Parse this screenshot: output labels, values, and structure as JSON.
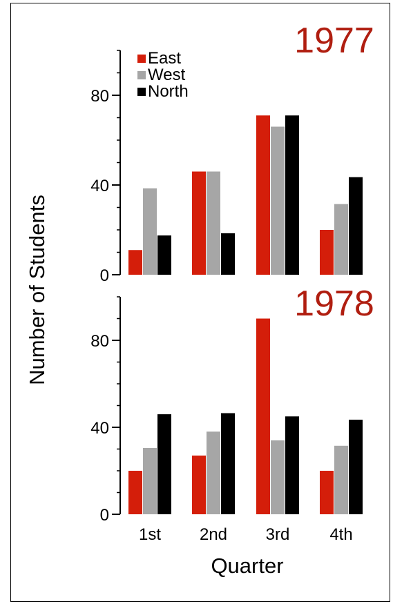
{
  "chart_data": [
    {
      "type": "bar",
      "title": "1977",
      "categories": [
        "1st",
        "2nd",
        "3rd",
        "4th"
      ],
      "series": [
        {
          "name": "East",
          "values": [
            11,
            46,
            71,
            20
          ]
        },
        {
          "name": "West",
          "values": [
            38.5,
            46,
            66,
            31.5
          ]
        },
        {
          "name": "North",
          "values": [
            17.5,
            18.5,
            71,
            43.5
          ]
        }
      ],
      "ylabel": "Number of Students",
      "xlabel": "",
      "ylim": [
        0,
        100
      ],
      "yticks": [
        0,
        40,
        80
      ],
      "legend": "top-left",
      "grid": false
    },
    {
      "type": "bar",
      "title": "1978",
      "categories": [
        "1st",
        "2nd",
        "3rd",
        "4th"
      ],
      "series": [
        {
          "name": "East",
          "values": [
            20,
            27,
            90,
            20
          ]
        },
        {
          "name": "West",
          "values": [
            30.5,
            38,
            34,
            31.5
          ]
        },
        {
          "name": "North",
          "values": [
            46,
            46.5,
            45,
            43.5
          ]
        }
      ],
      "ylabel": "Number of Students",
      "xlabel": "Quarter",
      "ylim": [
        0,
        100
      ],
      "yticks": [
        0,
        40,
        80
      ],
      "grid": false
    }
  ],
  "colors": {
    "East": "#d41e0a",
    "West": "#a6a6a6",
    "North": "#000000",
    "title": "#b01e10"
  }
}
